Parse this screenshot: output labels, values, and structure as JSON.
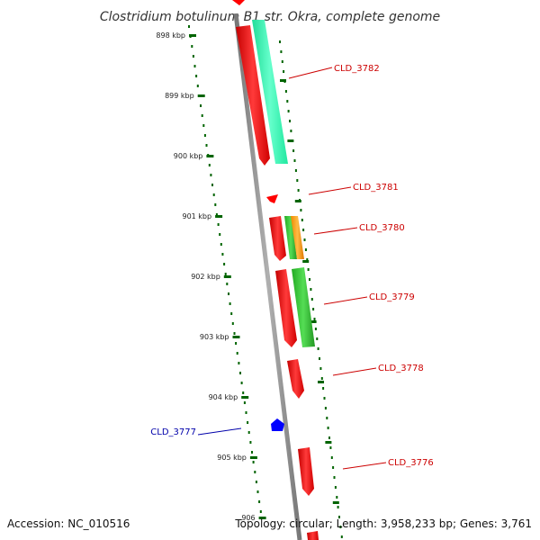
{
  "title": "Clostridium botulinum B1 str. Okra, complete genome",
  "footer": {
    "accession": "Accession: NC_010516",
    "summary": "Topology: circular; Length: 3,958,233 bp; Genes: 3,761"
  },
  "colors": {
    "backbone": "#888888",
    "tick": "#006400",
    "forward_label": "#cc0000",
    "reverse_label": "#0000aa",
    "cds": "#ff0000",
    "green_cds": "#33cc33",
    "teal_cds": "#33ffaa",
    "orange_cds": "#ff9900",
    "blue_feature": "#0000ff"
  },
  "scale": {
    "unit": "kbp",
    "major_ticks": [
      "898 kbp",
      "899 kbp",
      "900 kbp",
      "901 kbp",
      "902 kbp",
      "903 kbp",
      "904 kbp",
      "905 kbp",
      "906"
    ]
  },
  "genes": [
    {
      "label": "CLD_3782",
      "strand": "forward"
    },
    {
      "label": "CLD_3781",
      "strand": "forward"
    },
    {
      "label": "CLD_3780",
      "strand": "forward"
    },
    {
      "label": "CLD_3779",
      "strand": "forward"
    },
    {
      "label": "CLD_3778",
      "strand": "forward"
    },
    {
      "label": "CLD_3776",
      "strand": "forward"
    },
    {
      "label": "CLD_3777",
      "strand": "reverse"
    }
  ]
}
